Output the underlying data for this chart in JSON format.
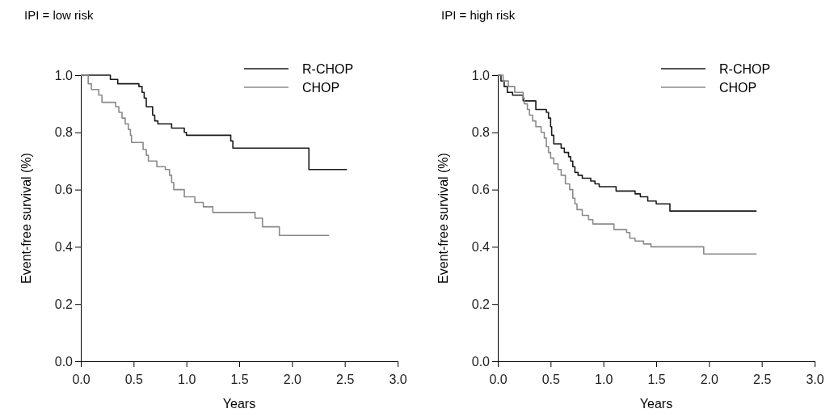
{
  "chart_data": [
    {
      "type": "step",
      "title": "IPI = low risk",
      "xlabel": "Years",
      "ylabel": "Event-free survival (%)",
      "xlim": [
        0,
        3
      ],
      "ylim": [
        0,
        1
      ],
      "xticks": [
        {
          "value": 0,
          "label": "0.0"
        },
        {
          "value": 0.5,
          "label": "0.5"
        },
        {
          "value": 1,
          "label": "1.0"
        },
        {
          "value": 1.5,
          "label": "1.5"
        },
        {
          "value": 2,
          "label": "2.0"
        },
        {
          "value": 2.5,
          "label": "2.5"
        },
        {
          "value": 3,
          "label": "3.0"
        }
      ],
      "yticks": [
        {
          "value": 0,
          "label": "0.0"
        },
        {
          "value": 0.2,
          "label": "0.2"
        },
        {
          "value": 0.4,
          "label": "0.4"
        },
        {
          "value": 0.6,
          "label": "0.6"
        },
        {
          "value": 0.8,
          "label": "0.8"
        },
        {
          "value": 1,
          "label": "1.0"
        }
      ],
      "grid": false,
      "legend": "top right",
      "marker": "none",
      "line_style": "solid",
      "series": [
        {
          "name": "R-CHOP",
          "color": "#1a1a1a",
          "x": [
            0,
            0.28,
            0.35,
            0.55,
            0.58,
            0.6,
            0.62,
            0.68,
            0.7,
            0.73,
            0.86,
            0.98,
            1.0,
            1.42,
            1.44,
            2.16,
            2.52
          ],
          "values": [
            1.0,
            0.985,
            0.97,
            0.96,
            0.94,
            0.92,
            0.89,
            0.86,
            0.84,
            0.83,
            0.815,
            0.8,
            0.79,
            0.77,
            0.745,
            0.67,
            0.67
          ]
        },
        {
          "name": "CHOP",
          "color": "#8a8a8a",
          "x": [
            0,
            0.07,
            0.1,
            0.17,
            0.2,
            0.33,
            0.36,
            0.39,
            0.42,
            0.45,
            0.47,
            0.48,
            0.59,
            0.62,
            0.64,
            0.72,
            0.8,
            0.84,
            0.86,
            0.88,
            0.98,
            1.08,
            1.16,
            1.25,
            1.65,
            1.72,
            1.88,
            2.35
          ],
          "values": [
            1.0,
            0.97,
            0.95,
            0.93,
            0.905,
            0.89,
            0.87,
            0.85,
            0.83,
            0.81,
            0.79,
            0.765,
            0.74,
            0.72,
            0.7,
            0.68,
            0.67,
            0.65,
            0.625,
            0.6,
            0.575,
            0.555,
            0.54,
            0.52,
            0.5,
            0.47,
            0.44,
            0.44
          ]
        }
      ]
    },
    {
      "type": "step",
      "title": "IPI = high risk",
      "xlabel": "Years",
      "ylabel": "Event-free survival (%)",
      "xlim": [
        0,
        3
      ],
      "ylim": [
        0,
        1
      ],
      "xticks": [
        {
          "value": 0,
          "label": "0.0"
        },
        {
          "value": 0.5,
          "label": "0.5"
        },
        {
          "value": 1,
          "label": "1.0"
        },
        {
          "value": 1.5,
          "label": "1.5"
        },
        {
          "value": 2,
          "label": "2.0"
        },
        {
          "value": 2.5,
          "label": "2.5"
        },
        {
          "value": 3,
          "label": "3.0"
        }
      ],
      "yticks": [
        {
          "value": 0,
          "label": "0.0"
        },
        {
          "value": 0.2,
          "label": "0.2"
        },
        {
          "value": 0.4,
          "label": "0.4"
        },
        {
          "value": 0.6,
          "label": "0.6"
        },
        {
          "value": 0.8,
          "label": "0.8"
        },
        {
          "value": 1,
          "label": "1.0"
        }
      ],
      "grid": false,
      "legend": "top right",
      "marker": "none",
      "line_style": "solid",
      "series": [
        {
          "name": "R-CHOP",
          "color": "#1a1a1a",
          "x": [
            0,
            0.03,
            0.06,
            0.09,
            0.14,
            0.24,
            0.36,
            0.46,
            0.48,
            0.5,
            0.51,
            0.53,
            0.6,
            0.63,
            0.67,
            0.69,
            0.71,
            0.73,
            0.76,
            0.8,
            0.88,
            0.92,
            0.96,
            1.12,
            1.3,
            1.35,
            1.42,
            1.5,
            1.63,
            2.45
          ],
          "values": [
            1.0,
            0.98,
            0.96,
            0.94,
            0.93,
            0.91,
            0.88,
            0.87,
            0.85,
            0.82,
            0.79,
            0.76,
            0.745,
            0.73,
            0.715,
            0.7,
            0.68,
            0.66,
            0.65,
            0.64,
            0.63,
            0.62,
            0.61,
            0.595,
            0.585,
            0.575,
            0.56,
            0.55,
            0.525,
            0.525
          ]
        },
        {
          "name": "CHOP",
          "color": "#8a8a8a",
          "x": [
            0,
            0.05,
            0.1,
            0.16,
            0.24,
            0.25,
            0.28,
            0.3,
            0.33,
            0.36,
            0.41,
            0.44,
            0.46,
            0.48,
            0.5,
            0.53,
            0.57,
            0.6,
            0.64,
            0.68,
            0.71,
            0.73,
            0.75,
            0.8,
            0.86,
            0.9,
            1.1,
            1.22,
            1.25,
            1.3,
            1.38,
            1.45,
            1.95,
            2.45
          ],
          "values": [
            1.0,
            0.98,
            0.96,
            0.94,
            0.92,
            0.9,
            0.88,
            0.86,
            0.84,
            0.82,
            0.8,
            0.78,
            0.75,
            0.73,
            0.71,
            0.69,
            0.67,
            0.65,
            0.62,
            0.6,
            0.57,
            0.55,
            0.53,
            0.51,
            0.495,
            0.48,
            0.46,
            0.45,
            0.43,
            0.42,
            0.41,
            0.4,
            0.375,
            0.375
          ]
        }
      ]
    }
  ]
}
